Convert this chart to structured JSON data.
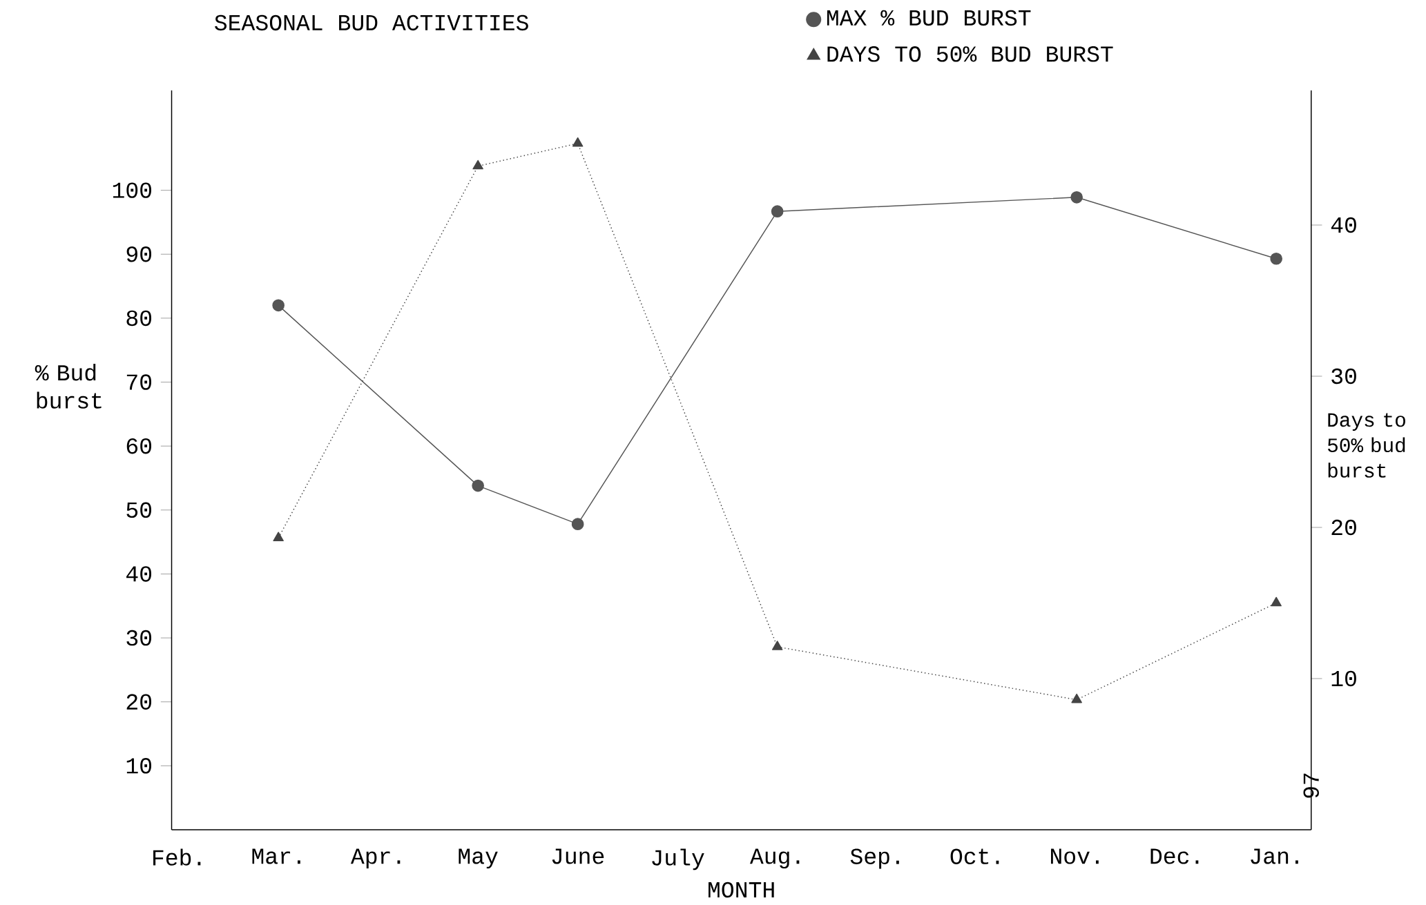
{
  "chart_data": {
    "type": "line",
    "title": "SEASONAL BUD ACTIVITIES",
    "xlabel": "MONTH",
    "ylabel": "% Bud burst",
    "y2label": "Days to 50% bud burst",
    "categories": [
      "Feb.",
      "Mar.",
      "Apr.",
      "May",
      "June",
      "July",
      "Aug.",
      "Sep.",
      "Oct.",
      "Nov.",
      "Dec.",
      "Jan."
    ],
    "series": [
      {
        "name": "MAX % BUD BURST",
        "color": "#555555",
        "marker": "circle",
        "line_style": "solid",
        "values": [
          null,
          82.0,
          null,
          53.8,
          47.8,
          null,
          96.7,
          null,
          null,
          98.9,
          null,
          89.3
        ]
      },
      {
        "name": "DAYS TO 50% BUD BURST",
        "color": "#444444",
        "marker": "triangle",
        "line_style": "dotted",
        "axis": "y2",
        "values": [
          null,
          19.3,
          null,
          43.9,
          45.4,
          null,
          12.1,
          null,
          null,
          8.6,
          null,
          15.0
        ]
      }
    ],
    "ylim": [
      0,
      115.6
    ],
    "yticks": [
      10,
      20,
      30,
      40,
      50,
      60,
      70,
      80,
      90,
      100
    ],
    "y2lim": [
      0,
      48.9
    ],
    "y2ticks": [
      10,
      20,
      30,
      40
    ],
    "legend": "top",
    "grid": false,
    "annotations": [
      "97"
    ]
  }
}
